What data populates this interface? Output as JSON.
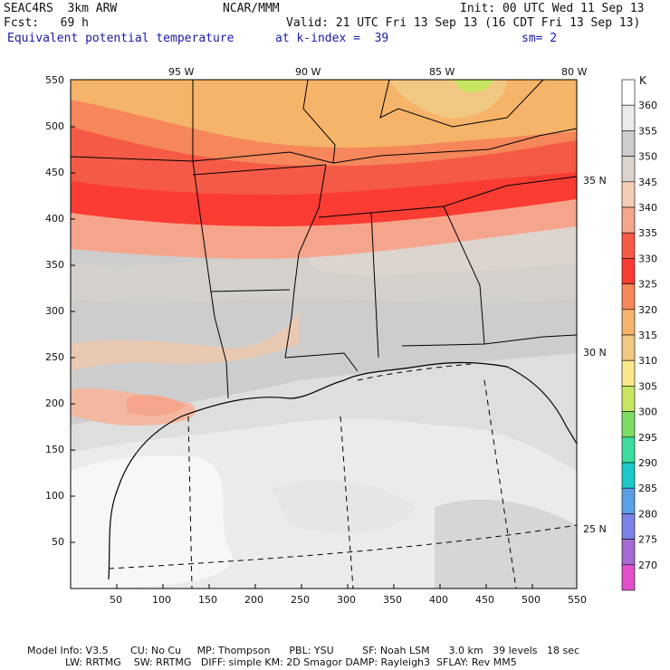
{
  "header": {
    "model": "SEAC4RS  3km ARW",
    "center": "NCAR/MMM",
    "init": "Init: 00 UTC Wed 11 Sep 13",
    "fcst": "Fcst:   69 h",
    "valid": "Valid: 21 UTC Fri 13 Sep 13 (16 CDT Fri 13 Sep 13)",
    "field": "Equivalent potential temperature",
    "level": "at k-index =  39",
    "smoothing": "sm= 2"
  },
  "map": {
    "lon_labels": [
      "95 W",
      "90 W",
      "85 W",
      "80 W"
    ],
    "lat_labels": [
      "35 N",
      "30 N",
      "25 N"
    ],
    "x_ticks": [
      "50",
      "100",
      "150",
      "200",
      "250",
      "300",
      "350",
      "400",
      "450",
      "500",
      "550"
    ],
    "y_ticks": [
      "550",
      "500",
      "450",
      "400",
      "350",
      "300",
      "250",
      "200",
      "150",
      "100",
      "50"
    ]
  },
  "colorbar": {
    "unit": "K",
    "levels": [
      "360",
      "355",
      "350",
      "345",
      "340",
      "335",
      "330",
      "325",
      "320",
      "315",
      "310",
      "305",
      "300",
      "295",
      "290",
      "285",
      "280",
      "275",
      "270"
    ],
    "colors": [
      "#ffffff",
      "#ebebeb",
      "#cdcdcd",
      "#dcd5cd",
      "#f5cdb5",
      "#f5a58c",
      "#f55a46",
      "#fa3c32",
      "#f5875a",
      "#f5b469",
      "#f0c882",
      "#fae68c",
      "#c8e664",
      "#7ddc64",
      "#3cdca0",
      "#1ec8c8",
      "#5aa0e6",
      "#7d82e6",
      "#a569d2",
      "#e150c8"
    ]
  },
  "footer": {
    "line1": "Model Info: V3.5       CU: No Cu     MP: Thompson      PBL: YSU         SF: Noah LSM      3.0 km   39 levels   18 sec",
    "line2": "            LW: RRTMG    SW: RRTMG   DIFF: simple KM: 2D Smagor DAMP: Rayleigh3  SFLAY: Rev MM5"
  }
}
